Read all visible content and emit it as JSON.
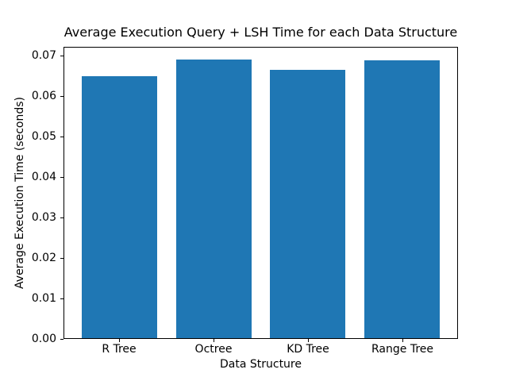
{
  "figure": {
    "background": "#ffffff",
    "spine_color": "#000000",
    "text_color": "#000000"
  },
  "chart_data": {
    "type": "bar",
    "title": "Average Execution Query + LSH Time for each Data Structure",
    "xlabel": "Data Structure",
    "ylabel": "Average Execution Time (seconds)",
    "categories": [
      "R Tree",
      "Octree",
      "KD Tree",
      "Range Tree"
    ],
    "values": [
      0.065,
      0.0691,
      0.0666,
      0.0688
    ],
    "ylim": [
      0,
      0.0722
    ],
    "yticks": [
      0.0,
      0.01,
      0.02,
      0.03,
      0.04,
      0.05,
      0.06,
      0.07
    ],
    "ytick_labels": [
      "0.00",
      "0.01",
      "0.02",
      "0.03",
      "0.04",
      "0.05",
      "0.06",
      "0.07"
    ],
    "xlim": [
      -0.59,
      3.59
    ],
    "bar_width_fraction": 0.8,
    "bar_color": "#1f77b4",
    "grid": false,
    "legend": "none"
  }
}
